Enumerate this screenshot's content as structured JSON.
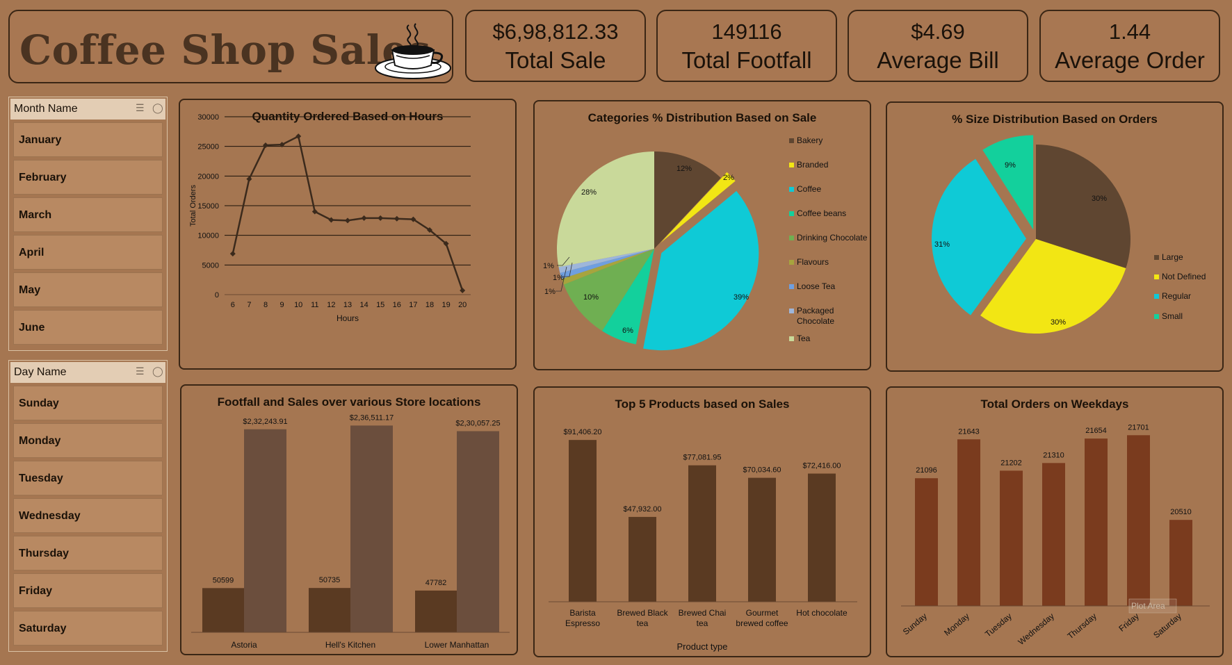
{
  "header": {
    "title": "Coffee Shop Sales",
    "cup_icon": "coffee-cup-icon"
  },
  "kpis": [
    {
      "value": "$6,98,812.33",
      "label": "Total Sale"
    },
    {
      "value": "149116",
      "label": "Total Footfall"
    },
    {
      "value": "$4.69",
      "label": "Average Bill"
    },
    {
      "value": "1.44",
      "label": "Average Order"
    }
  ],
  "month_slicer": {
    "header": "Month Name",
    "items": [
      "January",
      "February",
      "March",
      "April",
      "May",
      "June"
    ]
  },
  "day_slicer": {
    "header": "Day Name",
    "items": [
      "Sunday",
      "Monday",
      "Tuesday",
      "Wednesday",
      "Thursday",
      "Friday",
      "Saturday"
    ]
  },
  "colors": {
    "background": "#A57651",
    "dark_brown": "#5A3A22",
    "bar_brown": "#7A3B1E"
  },
  "chart_data": [
    {
      "type": "line",
      "title": "Quantity Ordered Based on Hours",
      "xlabel": "Hours",
      "ylabel": "Total Orders",
      "x": [
        "6",
        "7",
        "8",
        "9",
        "10",
        "11",
        "12",
        "13",
        "14",
        "15",
        "16",
        "17",
        "18",
        "19",
        "20"
      ],
      "values": [
        6900,
        19500,
        25200,
        25300,
        26700,
        14000,
        12600,
        12500,
        12900,
        12900,
        12800,
        12700,
        10900,
        8600,
        700
      ],
      "ylim": [
        0,
        30000
      ],
      "yticks": [
        "0",
        "5000",
        "10000",
        "15000",
        "20000",
        "25000",
        "30000"
      ],
      "grid": true
    },
    {
      "type": "pie",
      "title": "Categories % Distribution Based on Sale",
      "slices": [
        {
          "name": "Bakery",
          "value": 12,
          "label": "12%",
          "color": "#5F4631"
        },
        {
          "name": "Branded",
          "value": 2,
          "label": "2%",
          "color": "#F2E614"
        },
        {
          "name": "Coffee",
          "value": 39,
          "label": "39%",
          "color": "#0FCAD6"
        },
        {
          "name": "Coffee beans",
          "value": 6,
          "label": "6%",
          "color": "#13D09C"
        },
        {
          "name": "Drinking Chocolate",
          "value": 10,
          "label": "10%",
          "color": "#6FAF52"
        },
        {
          "name": "Flavours",
          "value": 1,
          "label": "1%",
          "color": "#A7A43E"
        },
        {
          "name": "Loose Tea",
          "value": 1,
          "label": "1%",
          "color": "#6F9FE0"
        },
        {
          "name": "Packaged Chocolate",
          "value": 1,
          "label": "1%",
          "color": "#9EB6DA"
        },
        {
          "name": "Tea",
          "value": 28,
          "label": "28%",
          "color": "#C9D99A"
        }
      ],
      "legend": "right"
    },
    {
      "type": "pie",
      "title": "%  Size Distribution Based on Orders",
      "slices": [
        {
          "name": "Large",
          "value": 30,
          "label": "30%",
          "color": "#5F4631"
        },
        {
          "name": "Not Defined",
          "value": 30,
          "label": "30%",
          "color": "#F2E614"
        },
        {
          "name": "Regular",
          "value": 31,
          "label": "31%",
          "color": "#0FCAD6"
        },
        {
          "name": "Small",
          "value": 9,
          "label": "9%",
          "color": "#13D09C"
        }
      ],
      "legend": "right"
    },
    {
      "type": "bar",
      "title": "Footfall and Sales over various Store locations",
      "categories": [
        "Astoria",
        "Hell's Kitchen",
        "Lower Manhattan"
      ],
      "series": [
        {
          "values": [
            50599,
            50735,
            47782
          ],
          "labels": [
            "50599",
            "50735",
            "47782"
          ],
          "color": "#5A3A22"
        },
        {
          "values": [
            232243.91,
            236511.17,
            230057.25
          ],
          "labels": [
            "$2,32,243.91",
            "$2,36,511.17",
            "$2,30,057.25"
          ],
          "color": "#6B4E3D"
        }
      ],
      "ylim": [
        0,
        240000
      ]
    },
    {
      "type": "bar",
      "title": "Top 5 Products based on Sales",
      "xlabel": "Product type",
      "categories": [
        [
          "Barista",
          "Espresso"
        ],
        [
          "Brewed Black",
          "tea"
        ],
        [
          "Brewed Chai",
          "tea"
        ],
        [
          "Gourmet",
          "brewed coffee"
        ],
        [
          "Hot chocolate"
        ]
      ],
      "values": [
        91406.2,
        47932.0,
        77081.95,
        70034.6,
        72416.0
      ],
      "labels": [
        "$91,406.20",
        "$47,932.00",
        "$77,081.95",
        "$70,034.60",
        "$72,416.00"
      ],
      "ylim": [
        0,
        95000
      ]
    },
    {
      "type": "bar",
      "title": "Total Orders on Weekdays",
      "categories": [
        "Sunday",
        "Monday",
        "Tuesday",
        "Wednesday",
        "Thursday",
        "Friday",
        "Saturday"
      ],
      "values": [
        21096,
        21643,
        21202,
        21310,
        21654,
        21701,
        20510
      ],
      "labels": [
        "21096",
        "21643",
        "21202",
        "21310",
        "21654",
        "21701",
        "20510"
      ],
      "ylim": [
        19300,
        21880
      ],
      "watermark": "Plot Area"
    }
  ]
}
